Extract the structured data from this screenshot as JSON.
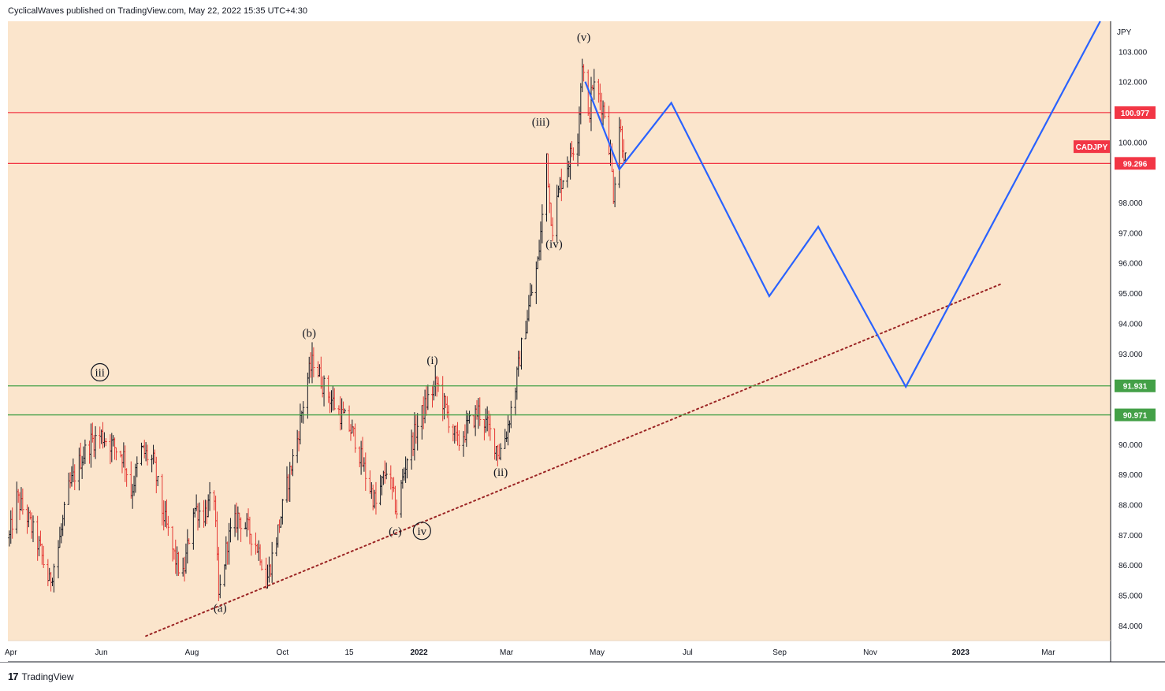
{
  "header": {
    "attribution": "CyclicalWaves published on TradingView.com, May 22, 2022 15:35 UTC+4:30"
  },
  "footer": {
    "logo_text": "TradingView",
    "logo_mark": "17"
  },
  "colors": {
    "background": "#fbe5cc",
    "bull_bar": "#131722",
    "bear_bar": "#e53935",
    "resistance": "#f23645",
    "support": "#43a047",
    "projection": "#2962ff",
    "trendline": "#9b2424"
  },
  "chart_data": {
    "type": "line",
    "symbol": "CADJPY",
    "currency": "JPY",
    "ylim": [
      83.5,
      104
    ],
    "y_ticks": [
      84,
      85,
      86,
      87,
      88,
      89,
      90,
      91,
      92,
      93,
      94,
      95,
      96,
      97,
      98,
      99,
      100,
      101,
      102,
      103
    ],
    "y_tick_labels": [
      "84.000",
      "85.000",
      "86.000",
      "87.000",
      "88.000",
      "89.000",
      "90.000",
      "",
      "",
      "93.000",
      "94.000",
      "95.000",
      "96.000",
      "97.000",
      "98.000",
      "",
      "100.000",
      "",
      "102.000",
      "103.000"
    ],
    "x_range": [
      "2021-03-30",
      "2023-04-12"
    ],
    "x_ticks": [
      {
        "date": "2021-04-01",
        "label": "Apr"
      },
      {
        "date": "2021-06-01",
        "label": "Jun"
      },
      {
        "date": "2021-08-01",
        "label": "Aug"
      },
      {
        "date": "2021-10-01",
        "label": "Oct"
      },
      {
        "date": "2021-11-15",
        "label": "15"
      },
      {
        "date": "2022-01-01",
        "label": "2022"
      },
      {
        "date": "2022-03-01",
        "label": "Mar"
      },
      {
        "date": "2022-05-01",
        "label": "May"
      },
      {
        "date": "2022-07-01",
        "label": "Jul"
      },
      {
        "date": "2022-09-01",
        "label": "Sep"
      },
      {
        "date": "2022-11-01",
        "label": "Nov"
      },
      {
        "date": "2023-01-01",
        "label": "2023"
      },
      {
        "date": "2023-03-01",
        "label": "Mar"
      }
    ],
    "price_path": [
      {
        "date": "2021-03-31",
        "value": 86.9
      },
      {
        "date": "2021-04-05",
        "value": 88.2
      },
      {
        "date": "2021-04-12",
        "value": 87.6
      },
      {
        "date": "2021-04-20",
        "value": 86.6
      },
      {
        "date": "2021-04-27",
        "value": 85.4
      },
      {
        "date": "2021-05-03",
        "value": 86.6
      },
      {
        "date": "2021-05-10",
        "value": 88.5
      },
      {
        "date": "2021-05-18",
        "value": 89.5
      },
      {
        "date": "2021-05-25",
        "value": 90.1
      },
      {
        "date": "2021-06-01",
        "value": 90.3
      },
      {
        "date": "2021-06-08",
        "value": 90.0
      },
      {
        "date": "2021-06-16",
        "value": 89.6
      },
      {
        "date": "2021-06-21",
        "value": 88.4
      },
      {
        "date": "2021-06-28",
        "value": 89.8
      },
      {
        "date": "2021-07-06",
        "value": 89.4
      },
      {
        "date": "2021-07-12",
        "value": 87.8
      },
      {
        "date": "2021-07-20",
        "value": 86.3
      },
      {
        "date": "2021-07-26",
        "value": 85.6
      },
      {
        "date": "2021-08-02",
        "value": 87.9
      },
      {
        "date": "2021-08-09",
        "value": 87.7
      },
      {
        "date": "2021-08-16",
        "value": 88.3
      },
      {
        "date": "2021-08-19",
        "value": 84.9
      },
      {
        "date": "2021-08-25",
        "value": 86.8
      },
      {
        "date": "2021-09-01",
        "value": 87.6
      },
      {
        "date": "2021-09-09",
        "value": 87.1
      },
      {
        "date": "2021-09-16",
        "value": 86.4
      },
      {
        "date": "2021-09-20",
        "value": 85.4
      },
      {
        "date": "2021-09-27",
        "value": 86.9
      },
      {
        "date": "2021-10-04",
        "value": 88.6
      },
      {
        "date": "2021-10-11",
        "value": 90.2
      },
      {
        "date": "2021-10-18",
        "value": 92.2
      },
      {
        "date": "2021-10-22",
        "value": 92.8
      },
      {
        "date": "2021-10-29",
        "value": 91.9
      },
      {
        "date": "2021-11-05",
        "value": 91.3
      },
      {
        "date": "2021-11-12",
        "value": 90.8
      },
      {
        "date": "2021-11-19",
        "value": 90.2
      },
      {
        "date": "2021-11-26",
        "value": 89.0
      },
      {
        "date": "2021-12-03",
        "value": 88.0
      },
      {
        "date": "2021-12-10",
        "value": 89.2
      },
      {
        "date": "2021-12-17",
        "value": 87.8
      },
      {
        "date": "2021-12-24",
        "value": 89.6
      },
      {
        "date": "2021-12-31",
        "value": 90.6
      },
      {
        "date": "2022-01-07",
        "value": 91.5
      },
      {
        "date": "2022-01-13",
        "value": 92.0
      },
      {
        "date": "2022-01-20",
        "value": 91.0
      },
      {
        "date": "2022-01-27",
        "value": 90.0
      },
      {
        "date": "2022-02-03",
        "value": 90.6
      },
      {
        "date": "2022-02-10",
        "value": 91.1
      },
      {
        "date": "2022-02-17",
        "value": 90.5
      },
      {
        "date": "2022-02-24",
        "value": 89.7
      },
      {
        "date": "2022-03-01",
        "value": 90.4
      },
      {
        "date": "2022-03-07",
        "value": 91.9
      },
      {
        "date": "2022-03-11",
        "value": 93.2
      },
      {
        "date": "2022-03-17",
        "value": 94.8
      },
      {
        "date": "2022-03-22",
        "value": 96.0
      },
      {
        "date": "2022-03-25",
        "value": 97.5
      },
      {
        "date": "2022-03-28",
        "value": 99.6
      },
      {
        "date": "2022-03-30",
        "value": 98.0
      },
      {
        "date": "2022-04-01",
        "value": 97.2
      },
      {
        "date": "2022-04-06",
        "value": 98.6
      },
      {
        "date": "2022-04-12",
        "value": 99.4
      },
      {
        "date": "2022-04-18",
        "value": 100.3
      },
      {
        "date": "2022-04-21",
        "value": 102.7
      },
      {
        "date": "2022-04-25",
        "value": 100.7
      },
      {
        "date": "2022-04-28",
        "value": 101.9
      },
      {
        "date": "2022-05-03",
        "value": 101.4
      },
      {
        "date": "2022-05-06",
        "value": 101.0
      },
      {
        "date": "2022-05-10",
        "value": 99.6
      },
      {
        "date": "2022-05-12",
        "value": 98.3
      },
      {
        "date": "2022-05-16",
        "value": 100.6
      },
      {
        "date": "2022-05-20",
        "value": 99.4
      }
    ],
    "horizontal_levels": [
      {
        "value": 100.977,
        "label": "100.977",
        "kind": "resistance"
      },
      {
        "value": 99.296,
        "label": "99.296",
        "kind": "resistance"
      },
      {
        "value": 91.931,
        "label": "91.931",
        "kind": "support"
      },
      {
        "value": 90.971,
        "label": "90.971",
        "kind": "support"
      }
    ],
    "symbol_tag": {
      "label": "CADJPY",
      "value": 99.85
    },
    "projection_path": [
      {
        "date": "2022-04-23",
        "value": 102.0
      },
      {
        "date": "2022-05-16",
        "value": 99.1
      },
      {
        "date": "2022-06-20",
        "value": 101.3
      },
      {
        "date": "2022-08-25",
        "value": 94.9
      },
      {
        "date": "2022-09-27",
        "value": 97.2
      },
      {
        "date": "2022-11-25",
        "value": 91.9
      },
      {
        "date": "2023-04-05",
        "value": 104.0
      }
    ],
    "trendline": {
      "start": {
        "date": "2021-07-01",
        "value": 83.65
      },
      "end": {
        "date": "2023-01-28",
        "value": 95.3
      }
    },
    "wave_labels": [
      {
        "text": "(v)",
        "date": "2022-04-22",
        "value": 103.35
      },
      {
        "text": "(iii)",
        "date": "2022-03-24",
        "value": 100.55
      },
      {
        "text": "(iv)",
        "date": "2022-04-02",
        "value": 96.5
      },
      {
        "text": "(b)",
        "date": "2021-10-19",
        "value": 93.55
      },
      {
        "text": "(i)",
        "date": "2022-01-10",
        "value": 92.65
      },
      {
        "text": "(ii)",
        "date": "2022-02-25",
        "value": 88.95
      },
      {
        "text": "(c)",
        "date": "2021-12-16",
        "value": 87.0
      },
      {
        "text": "(a)",
        "date": "2021-08-20",
        "value": 84.45
      },
      {
        "text": "iii",
        "date": "2021-05-31",
        "value": 92.25,
        "circled": true
      },
      {
        "text": "iv",
        "date": "2022-01-03",
        "value": 87.0,
        "circled": true
      }
    ]
  }
}
